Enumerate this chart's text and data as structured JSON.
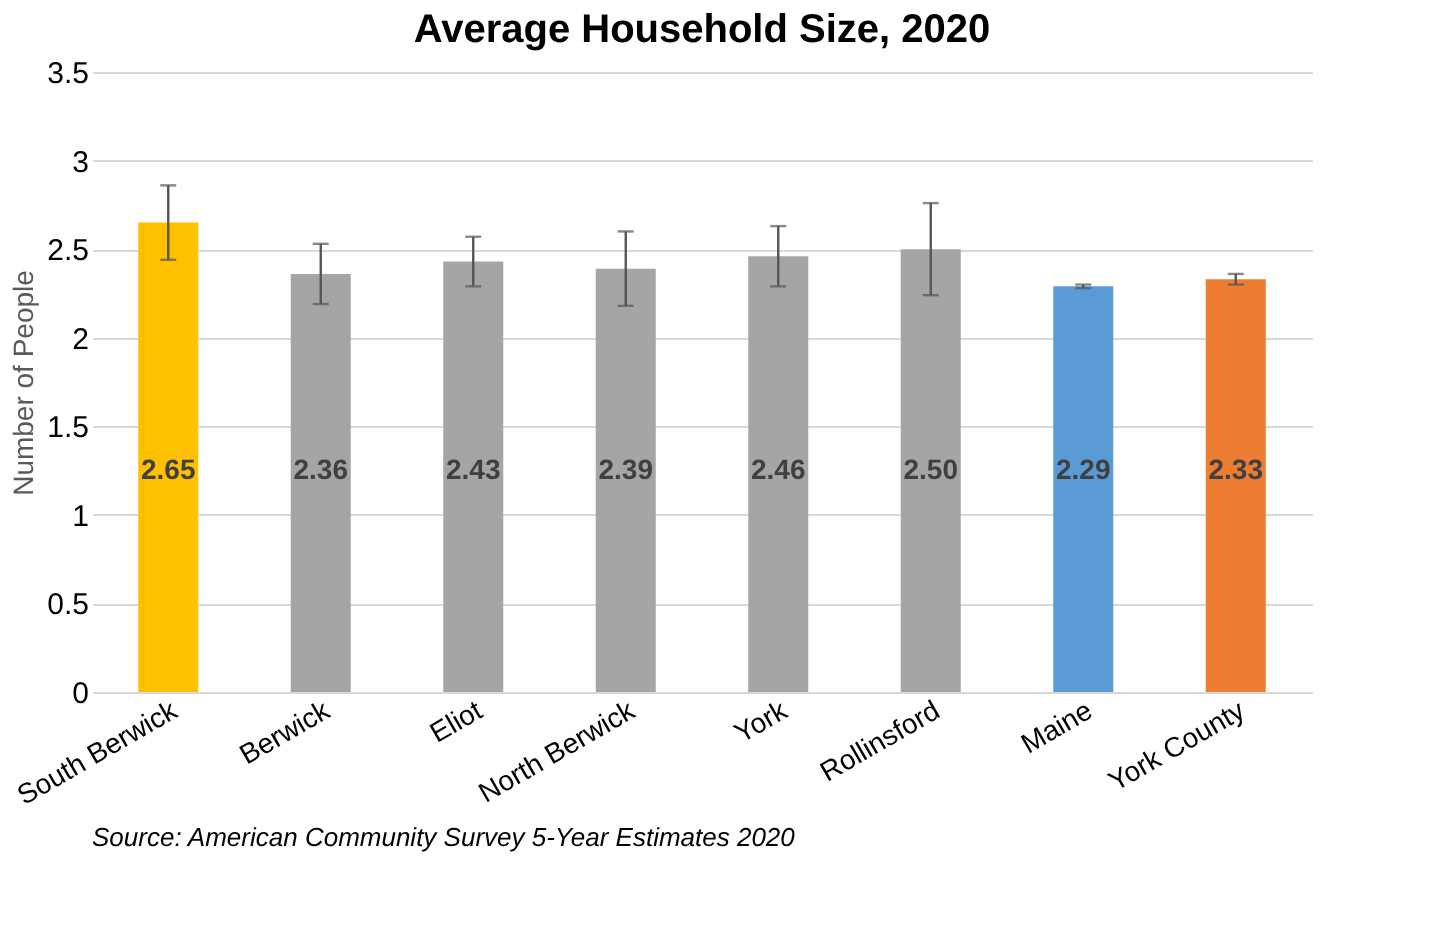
{
  "chart_data": {
    "type": "bar",
    "title": "Average Household Size, 2020",
    "ylabel": "Number of People",
    "categories": [
      "South Berwick",
      "Berwick",
      "Eliot",
      "North Berwick",
      "York",
      "Rollinsford",
      "Maine",
      "York County"
    ],
    "values": [
      2.65,
      2.36,
      2.43,
      2.39,
      2.46,
      2.5,
      2.29,
      2.33
    ],
    "value_labels": [
      "2.65",
      "2.36",
      "2.43",
      "2.39",
      "2.46",
      "2.50",
      "2.29",
      "2.33"
    ],
    "errors": [
      0.21,
      0.17,
      0.14,
      0.21,
      0.17,
      0.26,
      0.01,
      0.03
    ],
    "colors": [
      "#ffc000",
      "#a5a5a5",
      "#a5a5a5",
      "#a5a5a5",
      "#a5a5a5",
      "#a5a5a5",
      "#5b9bd5",
      "#ed7d31"
    ],
    "ylim": [
      0,
      3.5
    ],
    "yticks": [
      0,
      0.5,
      1,
      1.5,
      2,
      2.5,
      3,
      3.5
    ],
    "grid": "y",
    "annotations": [
      "Source: American Community Survey 5-Year Estimates 2020"
    ]
  }
}
